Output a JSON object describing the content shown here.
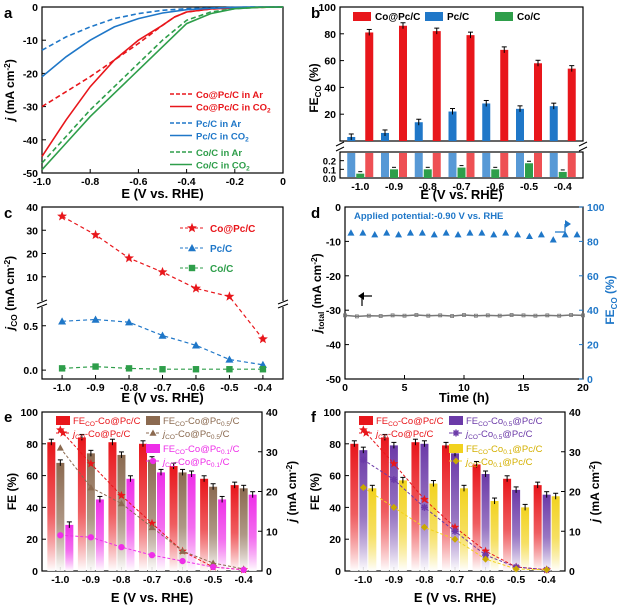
{
  "colors": {
    "co_pc_red": "#e8161b",
    "pc_blue": "#1f77c8",
    "co_green": "#2e9e4a",
    "brown": "#8b6a50",
    "magenta": "#ee2ee8",
    "purple": "#6b3aa8",
    "yellow": "#f2d21e",
    "d_blue": "#1f77c8",
    "gray": "#777777"
  },
  "chart_data": [
    {
      "panel": "a",
      "type": "line",
      "xlabel": "E (V vs. RHE)",
      "ylabel": "j (mA cm-2)",
      "ylabel_main": "j",
      "ylabel_unit": "(mA cm",
      "ylabel_sup": "-2",
      "xlim": [
        -1.0,
        0.0
      ],
      "ylim": [
        -50,
        0
      ],
      "xticks": [
        "-1.0",
        "-0.8",
        "-0.6",
        "-0.4",
        "-0.2",
        "0"
      ],
      "yticks": [
        "0",
        "-10",
        "-20",
        "-30",
        "-40",
        "-50"
      ],
      "series": [
        {
          "name": "Co@Pc/C in Ar",
          "label_main": "Co@Pc/C in Ar",
          "label_sub": "",
          "color": "#e8161b",
          "dash": true,
          "x": [
            -1.0,
            -0.9,
            -0.8,
            -0.7,
            -0.6,
            -0.5,
            -0.45,
            -0.4,
            -0.3,
            -0.2,
            -0.1,
            0.0
          ],
          "y": [
            -30,
            -25.5,
            -21,
            -16,
            -11,
            -5.5,
            -3,
            -1.5,
            -0.6,
            -0.3,
            -0.1,
            0
          ]
        },
        {
          "name": "Co@Pc/C in CO2",
          "label_main": "Co@Pc/C in CO",
          "label_sub": "2",
          "color": "#e8161b",
          "dash": false,
          "x": [
            -1.0,
            -0.9,
            -0.8,
            -0.7,
            -0.6,
            -0.5,
            -0.45,
            -0.4,
            -0.3,
            -0.2,
            -0.1,
            0.0
          ],
          "y": [
            -45,
            -34,
            -24,
            -16,
            -10,
            -5.5,
            -3,
            -1.5,
            -0.6,
            -0.3,
            -0.1,
            0
          ]
        },
        {
          "name": "Pc/C in Ar",
          "label_main": "Pc/C in Ar",
          "label_sub": "",
          "color": "#1f77c8",
          "dash": true,
          "x": [
            -1.0,
            -0.9,
            -0.8,
            -0.7,
            -0.6,
            -0.5,
            -0.4,
            -0.3,
            -0.2,
            -0.1,
            0.0
          ],
          "y": [
            -13,
            -9,
            -6,
            -3.5,
            -2,
            -1,
            -0.5,
            -0.3,
            -0.1,
            0,
            0
          ]
        },
        {
          "name": "Pc/C in CO2",
          "label_main": "Pc/C in CO",
          "label_sub": "2",
          "color": "#1f77c8",
          "dash": false,
          "x": [
            -1.0,
            -0.9,
            -0.8,
            -0.7,
            -0.6,
            -0.5,
            -0.4,
            -0.3,
            -0.2,
            -0.1,
            0.0
          ],
          "y": [
            -21,
            -15,
            -10,
            -6,
            -3.5,
            -1.8,
            -0.8,
            -0.4,
            -0.1,
            0,
            0
          ]
        },
        {
          "name": "Co/C in Ar",
          "label_main": "Co/C in Ar",
          "label_sub": "",
          "color": "#2e9e4a",
          "dash": true,
          "x": [
            -1.0,
            -0.9,
            -0.8,
            -0.7,
            -0.6,
            -0.5,
            -0.4,
            -0.3,
            -0.2,
            -0.1,
            0.0
          ],
          "y": [
            -47,
            -39,
            -31,
            -24,
            -17,
            -10,
            -4,
            -1.5,
            -0.5,
            -0.1,
            0
          ]
        },
        {
          "name": "Co/C in CO2",
          "label_main": "Co/C in CO",
          "label_sub": "2",
          "color": "#2e9e4a",
          "dash": false,
          "x": [
            -1.0,
            -0.9,
            -0.8,
            -0.7,
            -0.6,
            -0.5,
            -0.4,
            -0.3,
            -0.2,
            -0.1,
            0.0
          ],
          "y": [
            -49,
            -41,
            -33,
            -26,
            -19,
            -12,
            -5,
            -2,
            -0.5,
            -0.1,
            0
          ]
        }
      ]
    },
    {
      "panel": "b",
      "type": "bar",
      "xlabel": "E (V vs. RHE)",
      "ylabel": "FE CO (%)",
      "ylabel_main": "FE",
      "ylabel_sub": "CO",
      "ylabel_unit": " (%)",
      "categories": [
        "-1.0",
        "-0.9",
        "-0.8",
        "-0.7",
        "-0.6",
        "-0.5",
        "-0.4"
      ],
      "upper_ylim": [
        0,
        100
      ],
      "upper_yticks": [
        "0",
        "20",
        "40",
        "60",
        "80",
        "100"
      ],
      "lower_ylim": [
        0,
        0.3
      ],
      "lower_yticks": [
        "0.0",
        "0.1",
        "0.2"
      ],
      "series": [
        {
          "name": "Co@Pc/C",
          "color": "#e8161b",
          "values": [
            81,
            86,
            82,
            79,
            68,
            58,
            54
          ]
        },
        {
          "name": "Pc/C",
          "color": "#1f77c8",
          "values": [
            3,
            6,
            14,
            22,
            28,
            24,
            26
          ]
        },
        {
          "name": "Co/C",
          "color": "#2e9e4a",
          "values": [
            0.05,
            0.1,
            0.1,
            0.12,
            0.1,
            0.17,
            0.07
          ]
        }
      ]
    },
    {
      "panel": "c",
      "type": "line",
      "xlabel": "E (V vs. RHE)",
      "ylabel": "jCO (mA cm-2)",
      "ylabel_main": "j",
      "ylabel_sub": "CO",
      "ylabel_unit": " (mA cm",
      "ylabel_sup": "-2",
      "categories": [
        "-1.0",
        "-0.9",
        "-0.8",
        "-0.7",
        "-0.6",
        "-0.5",
        "-0.4"
      ],
      "upper_yticks": [
        "10",
        "20",
        "30",
        "40"
      ],
      "lower_yticks": [
        "0.0",
        "0.5"
      ],
      "upper_ylim": [
        0,
        40
      ],
      "lower_ylim": [
        -0.1,
        0.7
      ],
      "series": [
        {
          "name": "Co@Pc/C",
          "color": "#e8161b",
          "marker": "star",
          "values": [
            36,
            28,
            18,
            12,
            5,
            1.5,
            0.35
          ]
        },
        {
          "name": "Pc/C",
          "color": "#1f77c8",
          "marker": "triangle",
          "values": [
            0.55,
            0.57,
            0.54,
            0.39,
            0.28,
            0.12,
            0.06
          ]
        },
        {
          "name": "Co/C",
          "color": "#2e9e4a",
          "marker": "square",
          "values": [
            0.02,
            0.04,
            0.02,
            0.01,
            0.01,
            0.01,
            0.01
          ]
        }
      ]
    },
    {
      "panel": "d",
      "type": "scatter",
      "xlabel": "Time (h)",
      "ylabel": "jtotal (mA cm-2)",
      "ylabel_main": "j",
      "ylabel_sub": "total",
      "ylabel_unit": " (mA cm",
      "ylabel_sup": "-2",
      "y2label": "FE CO (%)",
      "y2label_main": "FE",
      "y2label_sub": "CO",
      "y2label_unit": " (%)",
      "annotation": "Applied potential:-0.90 V vs. RHE",
      "xlim": [
        0,
        20
      ],
      "ylim": [
        -50,
        0
      ],
      "y2lim": [
        0,
        100
      ],
      "xticks": [
        "0",
        "5",
        "10",
        "15",
        "20"
      ],
      "yticks": [
        "0",
        "-10",
        "-20",
        "-30",
        "-40",
        "-50"
      ],
      "y2ticks": [
        "0",
        "20",
        "40",
        "60",
        "80",
        "100"
      ],
      "fe_series": {
        "name": "FE CO",
        "color": "#1f77c8",
        "x": [
          0.5,
          1.5,
          2.5,
          3.5,
          4.5,
          5.5,
          6.5,
          7.5,
          8.5,
          9.5,
          10.5,
          11.5,
          12.5,
          13.5,
          14.5,
          15.5,
          16.5,
          17.5,
          18.5,
          19.5
        ],
        "y": [
          85,
          85,
          84,
          85,
          84,
          85,
          85,
          84,
          85,
          84,
          85,
          85,
          84,
          85,
          84,
          83,
          84,
          81,
          84,
          84
        ]
      },
      "j_series": {
        "name": "j total",
        "color": "#777777",
        "x": [
          0,
          1,
          2,
          3,
          4,
          5,
          6,
          7,
          8,
          9,
          10,
          11,
          12,
          13,
          14,
          15,
          16,
          17,
          18,
          19,
          20
        ],
        "y": [
          -31.5,
          -31.8,
          -31.6,
          -31.7,
          -31.5,
          -31.6,
          -31.4,
          -31.6,
          -31.5,
          -31.7,
          -31.4,
          -31.6,
          -31.5,
          -31.6,
          -31.4,
          -31.5,
          -31.6,
          -31.5,
          -31.6,
          -31.4,
          -31.5
        ]
      }
    },
    {
      "panel": "e",
      "type": "bar",
      "xlabel": "E (V vs. RHE)",
      "ylabel": "FE (%)",
      "y2label": "j (mA cm-2)",
      "y2label_main": "j",
      "y2label_unit": " (mA cm",
      "y2label_sup": "-2",
      "categories": [
        "-1.0",
        "-0.9",
        "-0.8",
        "-0.7",
        "-0.6",
        "-0.5",
        "-0.4"
      ],
      "ylim": [
        0,
        100
      ],
      "y2lim": [
        0,
        40
      ],
      "yticks": [
        "0",
        "20",
        "40",
        "60",
        "80",
        "100"
      ],
      "y2ticks": [
        "0",
        "10",
        "20",
        "30",
        "40"
      ],
      "bars": [
        {
          "name": "FE CO-Co@Pc/C",
          "label_pre": "FE",
          "label_sub": "CO",
          "label_post": "-Co@Pc/C",
          "label_sub2": "",
          "label_post2": "",
          "color": "#e8161b",
          "values": [
            81,
            84,
            81,
            80,
            66,
            58,
            54
          ]
        },
        {
          "name": "FE CO-Co@Pc0.5/C",
          "label_pre": "FE",
          "label_sub": "CO",
          "label_post": "-Co@Pc",
          "label_sub2": "0.5",
          "label_post2": "/C",
          "color": "#8b6a50",
          "values": [
            68,
            74,
            73,
            70,
            62,
            53,
            52
          ]
        },
        {
          "name": "FE CO-Co@Pc0.1/C",
          "label_pre": "FE",
          "label_sub": "CO",
          "label_post": "-Co@Pc",
          "label_sub2": "0.1",
          "label_post2": "/C",
          "color": "#ee2ee8",
          "values": [
            29,
            45,
            58,
            62,
            61,
            45,
            48
          ]
        }
      ],
      "lines": [
        {
          "name": "j CO-Co@Pc/C",
          "label_pre": "j",
          "label_sub": "CO",
          "label_post": "-Co@Pc/C",
          "label_sub2": "",
          "label_post2": "",
          "color": "#e8161b",
          "marker": "star",
          "values": [
            35.5,
            27,
            19,
            12,
            5,
            1,
            0.3
          ]
        },
        {
          "name": "j CO-Co@Pc0.5/C",
          "label_pre": "j",
          "label_sub": "CO",
          "label_post": "-Co@Pc",
          "label_sub2": "0.5",
          "label_post2": "/C",
          "color": "#8b6a50",
          "marker": "triangle",
          "values": [
            31,
            21,
            17,
            11,
            5,
            2,
            0.5
          ]
        },
        {
          "name": "j CO-Co@Pc0.1/C",
          "label_pre": "j",
          "label_sub": "CO",
          "label_post": "-Co@Pc",
          "label_sub2": "0.1",
          "label_post2": "/C",
          "color": "#ee2ee8",
          "marker": "circle",
          "values": [
            9,
            8.5,
            6,
            4,
            2.5,
            1,
            0.3
          ]
        }
      ]
    },
    {
      "panel": "f",
      "type": "bar",
      "xlabel": "E (V vs. RHE)",
      "ylabel": "FE (%)",
      "y2label": "j (mA cm-2)",
      "y2label_main": "j",
      "y2label_unit": " (mA cm",
      "y2label_sup": "-2",
      "categories": [
        "-1.0",
        "-0.9",
        "-0.8",
        "-0.7",
        "-0.6",
        "-0.5",
        "-0.4"
      ],
      "ylim": [
        0,
        100
      ],
      "y2lim": [
        0,
        40
      ],
      "yticks": [
        "0",
        "20",
        "40",
        "60",
        "80",
        "100"
      ],
      "y2ticks": [
        "0",
        "10",
        "20",
        "30",
        "40"
      ],
      "bars": [
        {
          "name": "FE CO-Co@Pc/C",
          "label_pre": "FE",
          "label_sub": "CO",
          "label_post": "-Co@Pc/C",
          "label_sub2": "",
          "label_post2": "",
          "color": "#e8161b",
          "values": [
            80,
            84,
            81,
            79,
            67,
            58,
            54
          ]
        },
        {
          "name": "FE CO-Co0.5@Pc/C",
          "label_pre": "FE",
          "label_sub": "CO",
          "label_post": "-Co",
          "label_sub2": "0.5",
          "label_post2": "@Pc/C",
          "color": "#6b3aa8",
          "values": [
            76,
            79,
            80,
            74,
            61,
            51,
            48
          ]
        },
        {
          "name": "FE CO-Co0.1@Pc/C",
          "label_pre": "FE",
          "label_sub": "CO",
          "label_post": "-Co",
          "label_sub2": "0.1",
          "label_post2": "@Pc/C",
          "color": "#f2d21e",
          "values": [
            52,
            57,
            55,
            52,
            44,
            40,
            47
          ]
        }
      ],
      "lines": [
        {
          "name": "j CO-Co@Pc/C",
          "label_pre": "j",
          "label_sub": "CO",
          "label_post": "-Co@Pc/C",
          "label_sub2": "",
          "label_post2": "",
          "color": "#e8161b",
          "marker": "star",
          "values": [
            35.5,
            27,
            18,
            11,
            5,
            1,
            0.3
          ]
        },
        {
          "name": "j CO-Co0.5@Pc/C",
          "label_pre": "j",
          "label_sub": "CO",
          "label_post": "-Co",
          "label_sub2": "0.5",
          "label_post2": "@Pc/C",
          "color": "#6b3aa8",
          "marker": "asterisk",
          "values": [
            28,
            23,
            16,
            10,
            4,
            1,
            0.3
          ]
        },
        {
          "name": "j CO-Co0.1@Pc/C",
          "label_pre": "j",
          "label_sub": "CO",
          "label_post": "-Co",
          "label_sub2": "0.1",
          "label_post2": "@Pc/C",
          "color": "#f2d21e",
          "marker": "diamond",
          "values": [
            21,
            16,
            11,
            8,
            3,
            0.5,
            0.3
          ]
        }
      ]
    }
  ],
  "panel_labels": [
    "a",
    "b",
    "c",
    "d",
    "e",
    "f"
  ]
}
